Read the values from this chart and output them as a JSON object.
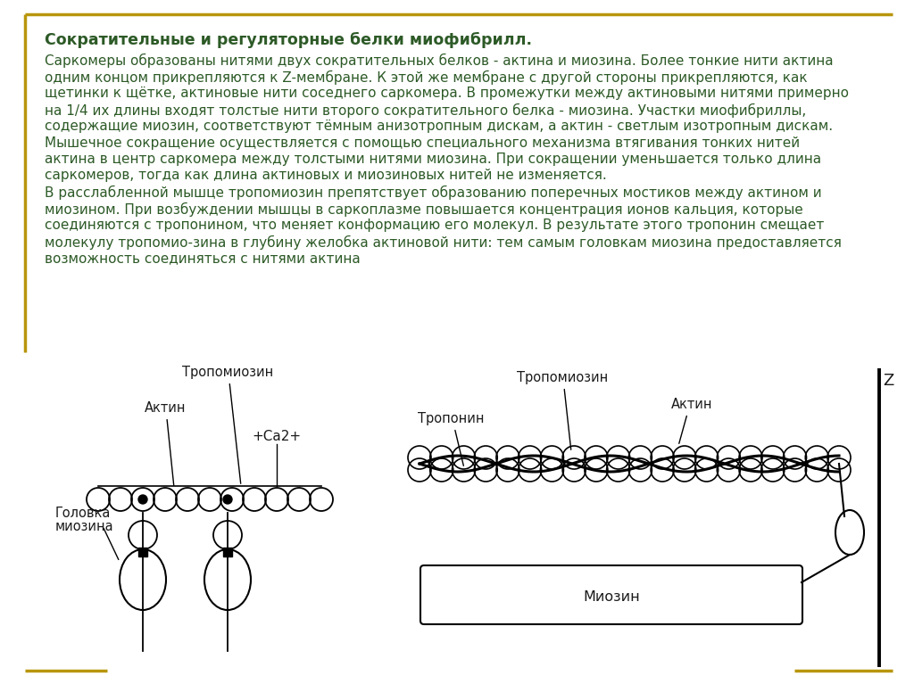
{
  "bg_color": "#ffffff",
  "border_color": "#B8960C",
  "text_color": "#2d5a27",
  "title": "Сократительные и регуляторные белки миофибрилл.",
  "body_line1": "Саркомеры образованы нитями двух сократительных белков - актина и миозина. Более тонкие нити актина",
  "body_line2": "одним концом прикрепляются к Z-мембране. К этой же мембране с другой стороны прикрепляются, как",
  "body_line3": "щетинки к щётке, актиновые нити соседнего саркомера. В промежутки между актиновыми нитями примерно",
  "body_line4": "на 1/4 их длины входят толстые нити второго сократительного белка - миозина. Участки миофибриллы,",
  "body_line5": "содержащие миозин, соответствуют тёмным анизотропным дискам, а актин - светлым изотропным дискам.",
  "body_line6": "Мышечное сокращение осуществляется с помощью специального механизма втягивания тонких нитей",
  "body_line7": "актина в центр саркомера между толстыми нитями миозина. При сокращении уменьшается только длина",
  "body_line8": "саркомеров, тогда как длина актиновых и миозиновых нитей не изменяется.",
  "body_line9": "В расслабленной мышце тропомиозин препятствует образованию поперечных мостиков между актином и",
  "body_line10": "миозином. При возбуждении мышцы в саркоплазме повышается концентрация ионов кальция, которые",
  "body_line11": "соединяются с тропонином, что меняет конформацию его молекул. В результате этого тропонин смещает",
  "body_line12": "молекулу тропомио-зина в глубину желобка актиновой нити: тем самым головкам миозина предоставляется",
  "body_line13": "возможность соединяться с нитями актина",
  "label_tropmyosin_left": "Тропомиозин",
  "label_actin_left": "Актин",
  "label_myosin_head": "Головка",
  "label_myosin_head2": "миозина",
  "label_ca": "+Ca2+",
  "label_tropmyosin_right": "Тропомиозин",
  "label_troponin": "Тропонин",
  "label_actin_right": "Актин",
  "label_myosin_right": "Миозин",
  "label_z": "Z",
  "diagram_text_color": "#1a1a1a",
  "title_fontsize": 12.5,
  "body_fontsize": 11.0,
  "diagram_fontsize": 10.5
}
